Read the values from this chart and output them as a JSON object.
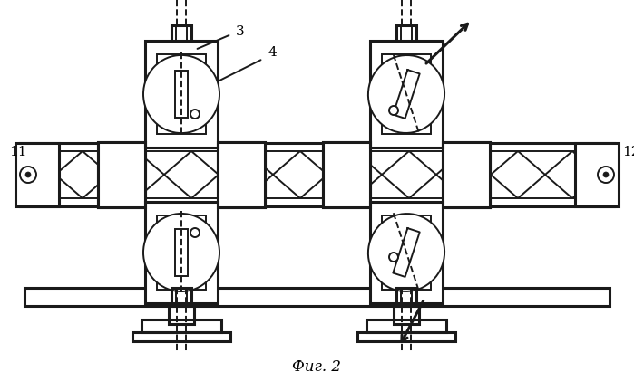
{
  "fig_label": "Фиг. 2",
  "label_3": "3",
  "label_4": "4",
  "label_11": "11",
  "label_12": "12",
  "bg_color": "#ffffff",
  "line_color": "#1a1a1a",
  "lw": 1.4,
  "lw2": 2.2,
  "figsize": [
    6.99,
    4.11
  ],
  "dpi": 100
}
